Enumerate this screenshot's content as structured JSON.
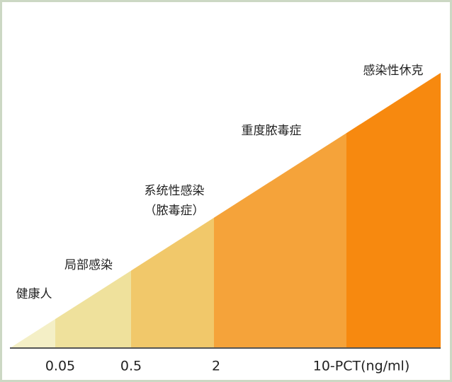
{
  "segments": [
    {
      "label": [
        "健康人"
      ],
      "color": "#f4efc6"
    },
    {
      "label": [
        "局部感染"
      ],
      "color": "#efe19c"
    },
    {
      "label": [
        "系统性感染",
        "（脓毒症）"
      ],
      "color": "#f1c86a"
    },
    {
      "label": [
        "重度脓毒症"
      ],
      "color": "#f5a33a"
    },
    {
      "label": [
        "感染性休克"
      ],
      "color": "#f7890f"
    }
  ],
  "axis": {
    "ticks": [
      "0.05",
      "0.5",
      "2",
      "10-PCT(ng/ml)"
    ]
  }
}
